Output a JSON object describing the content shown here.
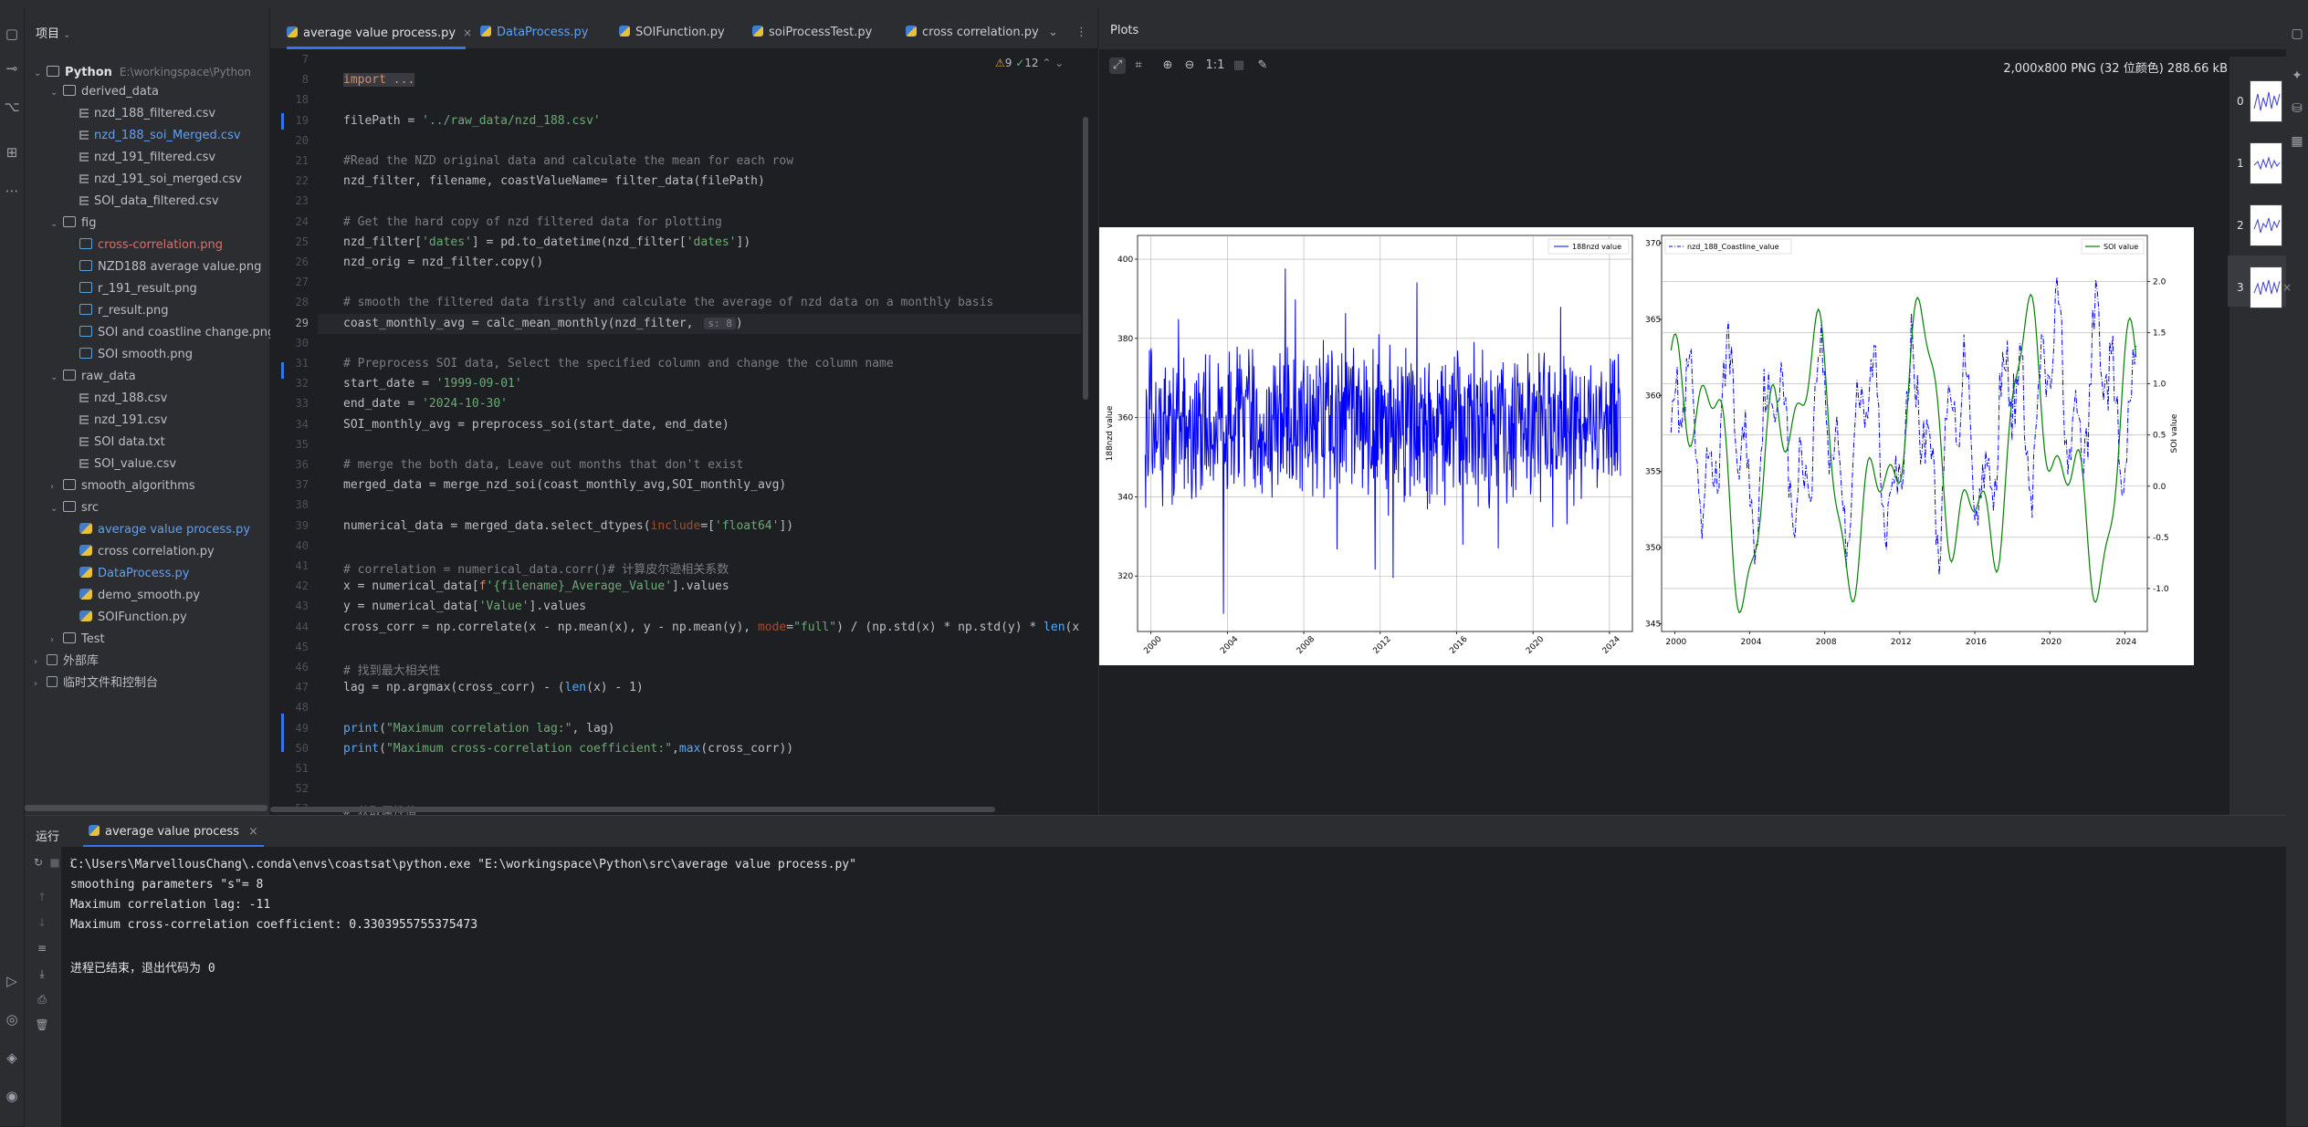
{
  "project": {
    "title": "项目",
    "root_name": "Python",
    "root_path": "E:\\workingspace\\Python",
    "items": [
      {
        "label": "derived_data",
        "kind": "folder",
        "color": "normal"
      },
      {
        "label": "nzd_188_filtered.csv",
        "kind": "file",
        "color": "normal"
      },
      {
        "label": "nzd_188_soi_Merged.csv",
        "kind": "file",
        "color": "blue"
      },
      {
        "label": "nzd_191_filtered.csv",
        "kind": "file",
        "color": "normal"
      },
      {
        "label": "nzd_191_soi_merged.csv",
        "kind": "file",
        "color": "normal"
      },
      {
        "label": "SOI_data_filtered.csv",
        "kind": "file",
        "color": "normal"
      },
      {
        "label": "fig",
        "kind": "folder",
        "color": "normal"
      },
      {
        "label": "cross-correlation.png",
        "kind": "img",
        "color": "red"
      },
      {
        "label": "NZD188 average value.png",
        "kind": "img",
        "color": "normal"
      },
      {
        "label": "r_191_result.png",
        "kind": "img",
        "color": "normal"
      },
      {
        "label": "r_result.png",
        "kind": "img",
        "color": "normal"
      },
      {
        "label": "SOI and coastline change.png",
        "kind": "img",
        "color": "normal"
      },
      {
        "label": "SOI smooth.png",
        "kind": "img",
        "color": "normal"
      },
      {
        "label": "raw_data",
        "kind": "folder",
        "color": "normal"
      },
      {
        "label": "nzd_188.csv",
        "kind": "file",
        "color": "normal"
      },
      {
        "label": "nzd_191.csv",
        "kind": "file",
        "color": "normal"
      },
      {
        "label": "SOI data.txt",
        "kind": "file",
        "color": "normal"
      },
      {
        "label": "SOI_value.csv",
        "kind": "file",
        "color": "normal"
      },
      {
        "label": "smooth_algorithms",
        "kind": "folder",
        "color": "normal"
      },
      {
        "label": "src",
        "kind": "folder",
        "color": "normal"
      },
      {
        "label": "average value process.py",
        "kind": "py",
        "color": "blue"
      },
      {
        "label": "cross correlation.py",
        "kind": "py",
        "color": "normal"
      },
      {
        "label": "DataProcess.py",
        "kind": "py",
        "color": "blue"
      },
      {
        "label": "demo_smooth.py",
        "kind": "py",
        "color": "normal"
      },
      {
        "label": "SOIFunction.py",
        "kind": "py",
        "color": "normal"
      },
      {
        "label": "Test",
        "kind": "folder",
        "color": "normal"
      },
      {
        "label": "外部库",
        "kind": "lib",
        "color": "normal"
      },
      {
        "label": "临时文件和控制台",
        "kind": "lib",
        "color": "normal"
      }
    ]
  },
  "tabs": [
    {
      "label": "average value process.py",
      "active": true
    },
    {
      "label": "DataProcess.py",
      "active": false
    },
    {
      "label": "SOIFunction.py",
      "active": false
    },
    {
      "label": "soiProcessTest.py",
      "active": false
    },
    {
      "label": "cross correlation.py",
      "active": false
    }
  ],
  "inspections": {
    "warnings": "9",
    "weak": "12"
  },
  "code_lines": [
    {
      "n": "7",
      "text": ""
    },
    {
      "n": "8",
      "text": "import ..."
    },
    {
      "n": "18",
      "text": ""
    },
    {
      "n": "19",
      "text": "filePath = '../raw_data/nzd_188.csv'"
    },
    {
      "n": "20",
      "text": ""
    },
    {
      "n": "21",
      "text": "#Read the NZD original data and calculate the mean for each row"
    },
    {
      "n": "22",
      "text": "nzd_filter, filename, coastValueName= filter_data(filePath)"
    },
    {
      "n": "23",
      "text": ""
    },
    {
      "n": "24",
      "text": "# Get the hard copy of nzd filtered data for plotting"
    },
    {
      "n": "25",
      "text": "nzd_filter['dates'] = pd.to_datetime(nzd_filter['dates'])"
    },
    {
      "n": "26",
      "text": "nzd_orig = nzd_filter.copy()"
    },
    {
      "n": "27",
      "text": ""
    },
    {
      "n": "28",
      "text": "# smooth the filtered data firstly and calculate the average of nzd data on a monthly basis"
    },
    {
      "n": "29",
      "text": "coast_monthly_avg = calc_mean_monthly(nzd_filter, "
    },
    {
      "n": "30",
      "text": ""
    },
    {
      "n": "31",
      "text": "# Preprocess SOI data, Select the specified column and change the column name"
    },
    {
      "n": "32",
      "text": "start_date = '1999-09-01'"
    },
    {
      "n": "33",
      "text": "end_date = '2024-10-30'"
    },
    {
      "n": "34",
      "text": "SOI_monthly_avg = preprocess_soi(start_date, end_date)"
    },
    {
      "n": "35",
      "text": ""
    },
    {
      "n": "36",
      "text": "# merge the both data, Leave out months that don't exist"
    },
    {
      "n": "37",
      "text": "merged_data = merge_nzd_soi(coast_monthly_avg,SOI_monthly_avg)"
    },
    {
      "n": "38",
      "text": ""
    },
    {
      "n": "39",
      "text": "numerical_data = merged_data.select_dtypes(include=['float64'])"
    },
    {
      "n": "40",
      "text": ""
    },
    {
      "n": "41",
      "text": "# correlation = numerical_data.corr()# 计算皮尔逊相关系数"
    },
    {
      "n": "42",
      "text": "x = numerical_data[f'{filename}_Average_Value'].values"
    },
    {
      "n": "43",
      "text": "y = numerical_data['Value'].values"
    },
    {
      "n": "44",
      "text": "cross_corr = np.correlate(x - np.mean(x), y - np.mean(y), mode=\"full\") / (np.std(x) * np.std(y) * len(x"
    },
    {
      "n": "45",
      "text": ""
    },
    {
      "n": "46",
      "text": "# 找到最大相关性"
    },
    {
      "n": "47",
      "text": "lag = np.argmax(cross_corr) - (len(x) - 1)"
    },
    {
      "n": "48",
      "text": ""
    },
    {
      "n": "49",
      "text": "print(\"Maximum correlation lag:\", lag)"
    },
    {
      "n": "50",
      "text": "print(\"Maximum cross-correlation coefficient:\",max(cross_corr))"
    },
    {
      "n": "51",
      "text": ""
    },
    {
      "n": "52",
      "text": ""
    },
    {
      "n": "53",
      "text": "# 获取属性值"
    }
  ],
  "inlay_hint": "s: 8",
  "plots": {
    "title": "Plots",
    "zoom_label": "1:1",
    "info": "2,000x800 PNG (32 位颜色) 288.66 kB",
    "thumbs": [
      "0",
      "1",
      "2",
      "3"
    ]
  },
  "chart_data": [
    {
      "type": "line",
      "title": "",
      "xlabel": "",
      "ylabel": "188nzd value",
      "xlim": [
        1999.3,
        2025.2
      ],
      "ylim": [
        306,
        406
      ],
      "xticks": [
        "2000",
        "2004",
        "2008",
        "2012",
        "2016",
        "2020",
        "2024"
      ],
      "yticks": [
        "320",
        "340",
        "360",
        "380",
        "400"
      ],
      "grid": true,
      "legend": "top-right",
      "series": [
        {
          "name": "188nzd value",
          "color": "#0000ff"
        }
      ]
    },
    {
      "type": "line",
      "title": "",
      "xlabel": "",
      "ylabel": "",
      "y2label": "SOI value",
      "xlim": [
        1999.3,
        2025.2
      ],
      "ylim": [
        344.5,
        370.5
      ],
      "y2lim": [
        -1.42,
        2.45
      ],
      "xticks": [
        "2000",
        "2004",
        "2008",
        "2012",
        "2016",
        "2020",
        "2024"
      ],
      "yticks": [
        "345",
        "350",
        "355",
        "360",
        "365",
        "370"
      ],
      "y2ticks": [
        "-1.0",
        "-0.5",
        "0.0",
        "0.5",
        "1.0",
        "1.5",
        "2.0"
      ],
      "grid": true,
      "legend": "top",
      "series": [
        {
          "name": "nzd_188_Coastline_value",
          "color": "#0000ff",
          "style": "dashdot"
        },
        {
          "name": "SOI value",
          "color": "#008000",
          "style": "solid"
        }
      ]
    }
  ],
  "run": {
    "label": "运行",
    "tab": "average value process",
    "console": [
      "C:\\Users\\MarvellousChang\\.conda\\envs\\coastsat\\python.exe \"E:\\workingspace\\Python\\src\\average value process.py\"",
      "smoothing parameters \"s\"= 8",
      "Maximum correlation lag: -11",
      "Maximum cross-correlation coefficient: 0.3303955755375473",
      "",
      "进程已结束，退出代码为 0"
    ]
  }
}
